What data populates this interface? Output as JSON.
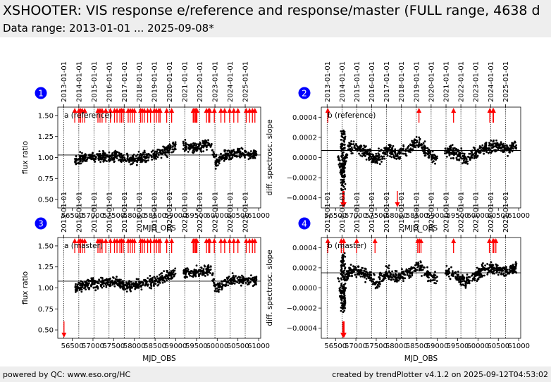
{
  "header": {
    "title": "XSHOOTER: VIS response e/reference and response/master (FULL range, 4638 d",
    "subtitle": "Data range: 2013-01-01 ... 2025-09-08*"
  },
  "footer": {
    "left": "powered by QC: www.eso.org/HC",
    "right": "created by trendPlotter v4.1.2 on 2025-09-12T04:53:02"
  },
  "colors": {
    "points": "#000000",
    "outlier": "#ff0000",
    "badge": "#0000ff",
    "header_bg": "#eeeeee"
  },
  "chart_data": [
    {
      "type": "scatter",
      "panel": "1",
      "label": "a (reference)",
      "xlabel": "MJD_OBS",
      "ylabel": "flux ratio",
      "xlim": [
        56150,
        61050
      ],
      "ylim": [
        0.4,
        1.6
      ],
      "xticks": [
        56500,
        57000,
        57500,
        58000,
        58500,
        59000,
        59500,
        60000,
        60500,
        61000
      ],
      "xtick_labels": [
        "56500",
        "57000",
        "57500",
        "58000",
        "58500",
        "59000",
        "59500",
        "60000",
        "60500",
        "61000"
      ],
      "yticks": [
        0.5,
        0.75,
        1.0,
        1.25,
        1.5
      ],
      "ytick_labels": [
        "0.50",
        "0.75",
        "1.00",
        "1.25",
        "1.50"
      ],
      "ref_line": 1.03,
      "year_dates": [
        "2013-01-01",
        "2014-01-01",
        "2015-01-01",
        "2016-01-01",
        "2017-01-01",
        "2018-01-01",
        "2019-01-01",
        "2020-01-01",
        "2021-01-01",
        "2022-01-01",
        "2023-01-01",
        "2024-01-01",
        "2025-01-01"
      ],
      "year_mjd": [
        56293,
        56658,
        57023,
        57388,
        57754,
        58119,
        58484,
        58849,
        59215,
        59580,
        59945,
        60310,
        60676
      ],
      "trend": [
        [
          56500,
          0.92
        ],
        [
          56600,
          0.97
        ],
        [
          56700,
          0.98
        ],
        [
          56800,
          1.0
        ],
        [
          57200,
          1.01
        ],
        [
          57600,
          1.02
        ],
        [
          57800,
          0.97
        ],
        [
          58200,
          1.0
        ],
        [
          58600,
          1.05
        ],
        [
          58900,
          1.12
        ],
        [
          59200,
          1.13
        ],
        [
          59500,
          1.12
        ],
        [
          59850,
          1.16
        ],
        [
          59950,
          0.95
        ],
        [
          60200,
          1.02
        ],
        [
          60500,
          1.06
        ],
        [
          60700,
          1.04
        ],
        [
          60900,
          1.03
        ]
      ],
      "spread": 0.06,
      "outliers_up": [
        56560,
        56660,
        56700,
        56740,
        56800,
        57120,
        57170,
        57220,
        57310,
        57420,
        57520,
        57580,
        57650,
        57690,
        57730,
        57850,
        57900,
        57950,
        58000,
        58150,
        58190,
        58240,
        58320,
        58390,
        58480,
        58530,
        58590,
        58620,
        58780,
        58900,
        59420,
        59440,
        59470,
        59490,
        59510,
        59740,
        59790,
        59820,
        59930,
        60090,
        60180,
        60300,
        60400,
        60500,
        60700,
        60780,
        60850,
        60910
      ],
      "outliers_down": []
    },
    {
      "type": "scatter",
      "panel": "2",
      "label": "b (reference)",
      "xlabel": "MJD_OBS",
      "ylabel": "diff. spectrosc. slope",
      "xlim": [
        56150,
        61050
      ],
      "ylim": [
        -0.0005,
        0.0005
      ],
      "xticks": [
        56500,
        57000,
        57500,
        58000,
        58500,
        59000,
        59500,
        60000,
        60500,
        61000
      ],
      "xtick_labels": [
        "56500",
        "57000",
        "57500",
        "58000",
        "58500",
        "59000",
        "59500",
        "60000",
        "60500",
        "61000"
      ],
      "yticks": [
        -0.0004,
        -0.0002,
        0.0,
        0.0002,
        0.0004
      ],
      "ytick_labels": [
        "−0.0004",
        "−0.0002",
        "0.0000",
        "0.0002",
        "0.0004"
      ],
      "ref_line": 7e-05,
      "year_dates": [
        "2013-01-01",
        "2014-01-01",
        "2015-01-01",
        "2016-01-01",
        "2017-01-01",
        "2018-01-01",
        "2019-01-01",
        "2020-01-01",
        "2021-01-01",
        "2022-01-01",
        "2023-01-01",
        "2024-01-01",
        "2025-01-01"
      ],
      "year_mjd": [
        56293,
        56658,
        57023,
        57388,
        57754,
        58119,
        58484,
        58849,
        59215,
        59580,
        59945,
        60310,
        60676
      ],
      "trend": [
        [
          56500,
          0.0001
        ],
        [
          56680,
          -0.0002
        ],
        [
          56800,
          0.0001
        ],
        [
          57000,
          0.0001
        ],
        [
          57300,
          5e-05
        ],
        [
          57500,
          -2e-05
        ],
        [
          57800,
          8e-05
        ],
        [
          58000,
          3e-05
        ],
        [
          58300,
          8e-05
        ],
        [
          58550,
          0.00015
        ],
        [
          58700,
          8e-05
        ],
        [
          58900,
          0.0
        ],
        [
          59200,
          8e-05
        ],
        [
          59450,
          4e-05
        ],
        [
          59700,
          -2e-05
        ],
        [
          59900,
          4e-05
        ],
        [
          60200,
          0.0001
        ],
        [
          60500,
          0.00012
        ],
        [
          60700,
          8e-05
        ],
        [
          60900,
          0.00012
        ]
      ],
      "spread": 6e-05,
      "outliers_up": [
        56310,
        58550,
        59400,
        60290,
        60370,
        60380
      ],
      "outliers_down": [
        56680,
        56690,
        56700,
        56710,
        58020
      ]
    },
    {
      "type": "scatter",
      "panel": "3",
      "label": "a (master)",
      "xlabel": "MJD_OBS",
      "ylabel": "flux ratio",
      "xlim": [
        56150,
        61050
      ],
      "ylim": [
        0.4,
        1.6
      ],
      "xticks": [
        56500,
        57000,
        57500,
        58000,
        58500,
        59000,
        59500,
        60000,
        60500,
        61000
      ],
      "xtick_labels": [
        "56500",
        "57000",
        "57500",
        "58000",
        "58500",
        "59000",
        "59500",
        "60000",
        "60500",
        "61000"
      ],
      "yticks": [
        0.5,
        0.75,
        1.0,
        1.25,
        1.5
      ],
      "ytick_labels": [
        "0.50",
        "0.75",
        "1.00",
        "1.25",
        "1.50"
      ],
      "ref_line": 1.08,
      "year_dates": [
        "2013-01-01",
        "2014-01-01",
        "2015-01-01",
        "2016-01-01",
        "2017-01-01",
        "2018-01-01",
        "2019-01-01",
        "2020-01-01",
        "2021-01-01",
        "2022-01-01",
        "2023-01-01",
        "2024-01-01",
        "2025-01-01"
      ],
      "year_mjd": [
        56293,
        56658,
        57023,
        57388,
        57754,
        58119,
        58484,
        58849,
        59215,
        59580,
        59945,
        60310,
        60676
      ],
      "trend": [
        [
          56500,
          0.97
        ],
        [
          56600,
          1.0
        ],
        [
          56700,
          1.02
        ],
        [
          56800,
          1.04
        ],
        [
          57200,
          1.06
        ],
        [
          57600,
          1.07
        ],
        [
          57800,
          1.02
        ],
        [
          58200,
          1.05
        ],
        [
          58600,
          1.1
        ],
        [
          58900,
          1.17
        ],
        [
          59200,
          1.19
        ],
        [
          59500,
          1.18
        ],
        [
          59850,
          1.22
        ],
        [
          59950,
          1.0
        ],
        [
          60200,
          1.07
        ],
        [
          60500,
          1.11
        ],
        [
          60700,
          1.09
        ],
        [
          60900,
          1.08
        ]
      ],
      "spread": 0.06,
      "outliers_up": [
        56560,
        56660,
        56700,
        56740,
        56800,
        57120,
        57170,
        57220,
        57310,
        57420,
        57520,
        57580,
        57650,
        57690,
        57730,
        57850,
        57900,
        57950,
        58000,
        58150,
        58190,
        58240,
        58320,
        58390,
        58480,
        58530,
        58590,
        58620,
        58780,
        58900,
        59420,
        59440,
        59470,
        59490,
        59510,
        59740,
        59790,
        59820,
        59930,
        60090,
        60180,
        60300,
        60400,
        60500,
        60700,
        60780,
        60850,
        60910
      ],
      "outliers_down": [
        56300
      ]
    },
    {
      "type": "scatter",
      "panel": "4",
      "label": "b (master)",
      "xlabel": "MJD_OBS",
      "ylabel": "diff. spectrosc. slope",
      "xlim": [
        56150,
        61050
      ],
      "ylim": [
        -0.0005,
        0.0005
      ],
      "xticks": [
        56500,
        57000,
        57500,
        58000,
        58500,
        59000,
        59500,
        60000,
        60500,
        61000
      ],
      "xtick_labels": [
        "56500",
        "57000",
        "57500",
        "58000",
        "58500",
        "59000",
        "59500",
        "60000",
        "60500",
        "61000"
      ],
      "yticks": [
        -0.0004,
        -0.0002,
        0.0,
        0.0002,
        0.0004
      ],
      "ytick_labels": [
        "−0.0004",
        "−0.0002",
        "0.0000",
        "0.0002",
        "0.0004"
      ],
      "ref_line": 0.00015,
      "year_dates": [
        "2013-01-01",
        "2014-01-01",
        "2015-01-01",
        "2016-01-01",
        "2017-01-01",
        "2018-01-01",
        "2019-01-01",
        "2020-01-01",
        "2021-01-01",
        "2022-01-01",
        "2023-01-01",
        "2024-01-01",
        "2025-01-01"
      ],
      "year_mjd": [
        56293,
        56658,
        57023,
        57388,
        57754,
        58119,
        58484,
        58849,
        59215,
        59580,
        59945,
        60310,
        60676
      ],
      "trend": [
        [
          56500,
          0.00018
        ],
        [
          56680,
          -0.00015
        ],
        [
          56800,
          0.00015
        ],
        [
          57000,
          0.00018
        ],
        [
          57300,
          0.00012
        ],
        [
          57500,
          5e-05
        ],
        [
          57800,
          0.00016
        ],
        [
          58000,
          0.0001
        ],
        [
          58300,
          0.00016
        ],
        [
          58550,
          0.00023
        ],
        [
          58700,
          0.00016
        ],
        [
          58900,
          8e-05
        ],
        [
          59200,
          0.00016
        ],
        [
          59450,
          0.00012
        ],
        [
          59700,
          5e-05
        ],
        [
          59900,
          0.00012
        ],
        [
          60200,
          0.00018
        ],
        [
          60500,
          0.0002
        ],
        [
          60700,
          0.00016
        ],
        [
          60900,
          0.0002
        ]
      ],
      "spread": 6e-05,
      "outliers_up": [
        56310,
        56640,
        56700,
        57020,
        57470,
        58520,
        58560,
        58600,
        59400,
        60280,
        60370,
        60390,
        60440
      ],
      "outliers_down": [
        56680,
        56690,
        56700,
        56710
      ]
    }
  ]
}
